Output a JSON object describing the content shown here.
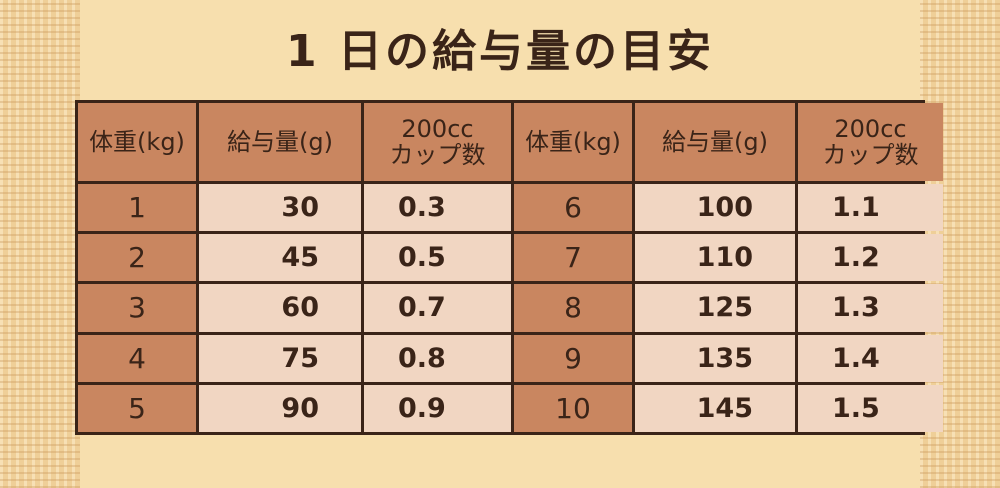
{
  "title": "1 日の給与量の目安",
  "table": {
    "header": [
      [
        "体重(kg)"
      ],
      [
        "給与量(g)"
      ],
      [
        "200cc",
        "カップ数"
      ],
      [
        "体重(kg)"
      ],
      [
        "給与量(g)"
      ],
      [
        "200cc",
        "カップ数"
      ]
    ],
    "rows": [
      [
        "1",
        "30",
        "0.3",
        "6",
        "100",
        "1.1"
      ],
      [
        "2",
        "45",
        "0.5",
        "7",
        "110",
        "1.2"
      ],
      [
        "3",
        "60",
        "0.7",
        "8",
        "125",
        "1.3"
      ],
      [
        "4",
        "75",
        "0.8",
        "9",
        "135",
        "1.4"
      ],
      [
        "5",
        "90",
        "0.9",
        "10",
        "145",
        "1.5"
      ]
    ]
  }
}
